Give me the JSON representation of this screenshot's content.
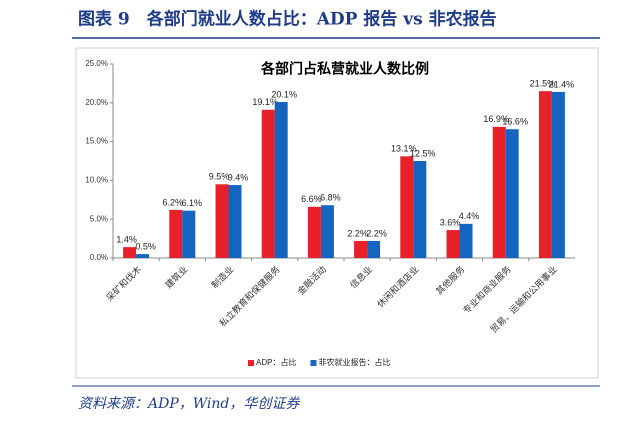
{
  "header": "图表 9　各部门就业人数占比：ADP 报告 vs 非农报告",
  "source": "资料来源：ADP，Wind，华创证券",
  "chart_data": {
    "type": "bar",
    "title": "各部门占私营就业人数比例",
    "categories": [
      "采矿和伐木",
      "建筑业",
      "制造业",
      "私立教育和保健服务",
      "金融活动",
      "信息业",
      "休闲和酒店业",
      "其他服务",
      "专业和商业服务",
      "贸易、运输和公用事业"
    ],
    "series": [
      {
        "name": "ADP：占比",
        "color": "#e8202a",
        "values": [
          1.4,
          6.2,
          9.5,
          19.1,
          6.6,
          2.2,
          13.1,
          3.6,
          16.9,
          21.5
        ],
        "value_labels": [
          "1.4%",
          "6.2%",
          "9.5%",
          "19.1%",
          "6.6%",
          "2.2%",
          "13.1%",
          "3.6%",
          "16.9%",
          "21.5%"
        ]
      },
      {
        "name": "非农就业报告：占比",
        "color": "#1565c0",
        "values": [
          0.5,
          6.1,
          9.4,
          20.1,
          6.8,
          2.2,
          12.5,
          4.4,
          16.6,
          21.4
        ],
        "value_labels": [
          "0.5%",
          "6.1%",
          "9.4%",
          "20.1%",
          "6.8%",
          "2.2%",
          "12.5%",
          "4.4%",
          "16.6%",
          "21.4%"
        ]
      }
    ],
    "ylim": [
      0,
      25
    ],
    "yticks": [
      {
        "value": 0,
        "label": "0.0%"
      },
      {
        "value": 5,
        "label": "5.0%"
      },
      {
        "value": 10,
        "label": "10.0%"
      },
      {
        "value": 15,
        "label": "15.0%"
      },
      {
        "value": 20,
        "label": "20.0%"
      },
      {
        "value": 25,
        "label": "25.0%"
      }
    ],
    "legend": "bottom"
  }
}
